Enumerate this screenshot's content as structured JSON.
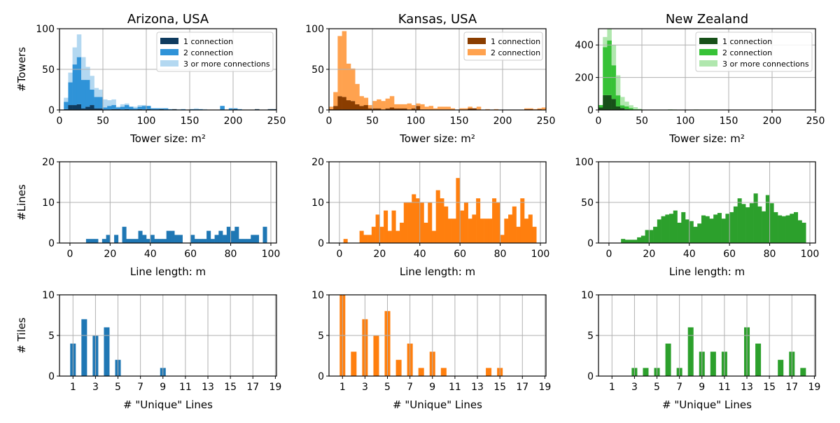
{
  "chart_data": [
    {
      "type": "bar",
      "subtype": "stacked-histogram",
      "title": "Arizona, USA",
      "xlabel": "Tower size: m²",
      "ylabel": "#Towers",
      "xlim": [
        0,
        250
      ],
      "ylim": [
        0,
        100
      ],
      "xticks": [
        0,
        50,
        100,
        150,
        200,
        250
      ],
      "yticks": [
        0,
        50,
        100
      ],
      "grid": true,
      "legend": "top-right",
      "bin_start": 0,
      "bin_width": 5,
      "series": [
        {
          "name": "1 connection",
          "color": "#0f3b5f",
          "values": [
            0,
            1,
            6,
            6,
            7,
            2,
            4,
            6,
            2,
            2,
            0,
            0,
            1,
            1,
            0,
            1,
            0,
            0,
            1,
            0,
            1,
            0,
            0,
            1,
            0,
            0,
            1,
            0,
            0,
            0,
            0,
            0,
            0,
            0,
            0,
            0,
            0,
            0,
            0,
            0,
            1,
            0,
            0,
            0,
            0,
            1,
            0,
            0,
            1,
            1
          ]
        },
        {
          "name": "2 connection",
          "color": "#2f93d8",
          "values": [
            0,
            9,
            28,
            50,
            58,
            35,
            33,
            19,
            14,
            14,
            3,
            5,
            5,
            2,
            4,
            5,
            4,
            2,
            3,
            5,
            4,
            2,
            2,
            1,
            2,
            1,
            0,
            0,
            1,
            0,
            1,
            1,
            1,
            0,
            0,
            0,
            0,
            5,
            0,
            2,
            1,
            1,
            0,
            0,
            0,
            0,
            0,
            0,
            0,
            0
          ]
        },
        {
          "name": "3 or more connections",
          "color": "#b3d8f1",
          "values": [
            0,
            5,
            12,
            21,
            28,
            28,
            16,
            17,
            11,
            9,
            10,
            7,
            7,
            1,
            3,
            2,
            0,
            2,
            2,
            1,
            0,
            0,
            0,
            0,
            0,
            0,
            0,
            1,
            0,
            0,
            0,
            1,
            0,
            1,
            0,
            0,
            0,
            0,
            0,
            0,
            0,
            0,
            0,
            0,
            0,
            0,
            0,
            0,
            0,
            0
          ]
        }
      ]
    },
    {
      "type": "bar",
      "subtype": "stacked-histogram",
      "title": "Kansas, USA",
      "xlabel": "Tower size: m²",
      "ylabel": "",
      "xlim": [
        0,
        250
      ],
      "ylim": [
        0,
        100
      ],
      "xticks": [
        0,
        50,
        100,
        150,
        200,
        250
      ],
      "yticks": [
        0,
        50,
        100
      ],
      "grid": true,
      "legend": "top-right",
      "bin_start": 0,
      "bin_width": 5,
      "series": [
        {
          "name": "1 connection",
          "color": "#8a3d00",
          "values": [
            1,
            5,
            17,
            16,
            12,
            11,
            7,
            5,
            6,
            2,
            2,
            2,
            0,
            2,
            3,
            2,
            2,
            2,
            0,
            2,
            5,
            0,
            0,
            0,
            0,
            0,
            0,
            0,
            0,
            0,
            0,
            0,
            2,
            2,
            0,
            0,
            0,
            0,
            0,
            0,
            0,
            0,
            0,
            0,
            0,
            1,
            1,
            0,
            1,
            0
          ]
        },
        {
          "name": "2 connection",
          "color": "#ffa24f",
          "values": [
            3,
            17,
            74,
            81,
            45,
            40,
            25,
            12,
            9,
            4,
            9,
            11,
            11,
            12,
            14,
            5,
            5,
            5,
            8,
            4,
            3,
            7,
            4,
            5,
            2,
            4,
            4,
            4,
            2,
            0,
            2,
            2,
            2,
            0,
            4,
            0,
            1,
            0,
            1,
            0,
            0,
            0,
            0,
            0,
            0,
            1,
            1,
            1,
            1,
            3
          ]
        }
      ]
    },
    {
      "type": "bar",
      "subtype": "stacked-histogram",
      "title": "New Zealand",
      "xlabel": "Tower size: m²",
      "ylabel": "",
      "xlim": [
        0,
        250
      ],
      "ylim": [
        0,
        500
      ],
      "xticks": [
        0,
        50,
        100,
        150,
        200,
        250
      ],
      "yticks": [
        0,
        200,
        400
      ],
      "grid": true,
      "legend": "top-right",
      "bin_start": 0,
      "bin_width": 5,
      "series": [
        {
          "name": "1 connection",
          "color": "#175019",
          "values": [
            15,
            91,
            91,
            68,
            22,
            12,
            4,
            1,
            0,
            0,
            0,
            0,
            0,
            0,
            0,
            0,
            0,
            0,
            0,
            0,
            0,
            0,
            0,
            0,
            0,
            0,
            0,
            0,
            0,
            0,
            0,
            0,
            0,
            0,
            0,
            0,
            0,
            0,
            0,
            0,
            0,
            0,
            0,
            0,
            0,
            0,
            0,
            0,
            0,
            0
          ]
        },
        {
          "name": "2 connection",
          "color": "#37c237",
          "values": [
            15,
            296,
            337,
            207,
            68,
            17,
            18,
            11,
            4,
            4,
            0,
            2,
            0,
            2,
            0,
            0,
            3,
            2,
            0,
            0,
            0,
            0,
            2,
            0,
            0,
            0,
            0,
            0,
            0,
            0,
            0,
            0,
            0,
            0,
            0,
            0,
            0,
            0,
            0,
            0,
            0,
            0,
            0,
            0,
            0,
            2,
            0,
            0,
            0,
            0
          ]
        },
        {
          "name": "3 or more connections",
          "color": "#b0e7ae",
          "values": [
            0,
            62,
            72,
            124,
            123,
            51,
            29,
            17,
            13,
            3,
            0,
            0,
            0,
            0,
            0,
            0,
            0,
            1,
            0,
            0,
            0,
            0,
            1,
            0,
            0,
            0,
            0,
            0,
            0,
            0,
            0,
            0,
            0,
            0,
            0,
            0,
            2,
            0,
            0,
            0,
            0,
            0,
            0,
            0,
            0,
            0,
            0,
            0,
            0,
            0
          ]
        }
      ]
    },
    {
      "type": "bar",
      "subtype": "histogram",
      "xlabel": "Line length: m",
      "ylabel": "#Lines",
      "xlim": [
        -5.2,
        102.8
      ],
      "ylim": [
        0,
        20
      ],
      "xticks": [
        0,
        20,
        40,
        60,
        80,
        100
      ],
      "yticks": [
        0,
        10,
        20
      ],
      "grid": true,
      "bin_start": 0,
      "bin_width": 2,
      "series": [
        {
          "color": "#1f77b4",
          "values": [
            0,
            0,
            0,
            0,
            1,
            1,
            1,
            0,
            1,
            2,
            0,
            2,
            0,
            4,
            1,
            1,
            1,
            3,
            2,
            1,
            2,
            1,
            1,
            1,
            3,
            3,
            2,
            2,
            0,
            0,
            2,
            1,
            1,
            1,
            3,
            1,
            2,
            3,
            2,
            4,
            3,
            4,
            1,
            1,
            1,
            2,
            2,
            0,
            4,
            0
          ]
        }
      ]
    },
    {
      "type": "bar",
      "subtype": "histogram",
      "xlabel": "Line length: m",
      "ylabel": "",
      "xlim": [
        -5.2,
        102.8
      ],
      "ylim": [
        0,
        20
      ],
      "xticks": [
        0,
        20,
        40,
        60,
        80,
        100
      ],
      "yticks": [
        0,
        10,
        20
      ],
      "grid": true,
      "bin_start": 0,
      "bin_width": 2,
      "series": [
        {
          "color": "#ff7f0e",
          "values": [
            0,
            1,
            0,
            0,
            0,
            3,
            2,
            2,
            4,
            7,
            4,
            8,
            3,
            8,
            3,
            5,
            10,
            10,
            12,
            11,
            10,
            5,
            10,
            3,
            13,
            11,
            9,
            6,
            6,
            16,
            8,
            10,
            6,
            7,
            11,
            6,
            6,
            6,
            11,
            10,
            2,
            6,
            7,
            9,
            4,
            11,
            6,
            7,
            4,
            0
          ]
        }
      ]
    },
    {
      "type": "bar",
      "subtype": "histogram",
      "xlabel": "Line length: m",
      "ylabel": "",
      "xlim": [
        -5.2,
        102.8
      ],
      "ylim": [
        0,
        100
      ],
      "xticks": [
        0,
        20,
        40,
        60,
        80,
        100
      ],
      "yticks": [
        0,
        50,
        100
      ],
      "grid": true,
      "bin_start": 0,
      "bin_width": 2,
      "series": [
        {
          "color": "#2ca02c",
          "values": [
            0,
            0,
            0,
            5,
            4,
            4,
            4,
            7,
            9,
            16,
            16,
            20,
            29,
            33,
            35,
            36,
            40,
            25,
            38,
            29,
            27,
            20,
            24,
            34,
            33,
            30,
            35,
            37,
            30,
            36,
            38,
            45,
            55,
            48,
            44,
            49,
            61,
            45,
            39,
            59,
            49,
            38,
            34,
            33,
            34,
            36,
            38,
            28,
            25,
            0
          ]
        }
      ]
    },
    {
      "type": "bar",
      "xlabel": "# \"Unique\" Lines",
      "ylabel": "# Tiles",
      "xlim": [
        -0.2,
        19.1
      ],
      "ylim": [
        0,
        10
      ],
      "xticks": [
        1,
        3,
        5,
        7,
        9,
        11,
        13,
        15,
        17,
        19
      ],
      "yticks": [
        0,
        5,
        10
      ],
      "grid": true,
      "categories": [
        1,
        2,
        3,
        4,
        5,
        9
      ],
      "series": [
        {
          "color": "#1f77b4",
          "values": [
            4,
            7,
            5,
            6,
            2,
            1
          ]
        }
      ]
    },
    {
      "type": "bar",
      "xlabel": "# \"Unique\" Lines",
      "ylabel": "",
      "xlim": [
        -0.2,
        19.1
      ],
      "ylim": [
        0,
        10
      ],
      "xticks": [
        1,
        3,
        5,
        7,
        9,
        11,
        13,
        15,
        17,
        19
      ],
      "yticks": [
        0,
        5,
        10
      ],
      "grid": true,
      "categories": [
        1,
        2,
        3,
        4,
        5,
        6,
        7,
        8,
        9,
        10,
        14,
        15
      ],
      "series": [
        {
          "color": "#ff7f0e",
          "values": [
            10,
            3,
            7,
            5,
            8,
            2,
            4,
            1,
            3,
            1,
            1,
            1
          ]
        }
      ]
    },
    {
      "type": "bar",
      "xlabel": "# \"Unique\" Lines",
      "ylabel": "",
      "xlim": [
        -0.2,
        19.1
      ],
      "ylim": [
        0,
        10
      ],
      "xticks": [
        1,
        3,
        5,
        7,
        9,
        11,
        13,
        15,
        17,
        19
      ],
      "yticks": [
        0,
        5,
        10
      ],
      "grid": true,
      "categories": [
        3,
        4,
        5,
        6,
        7,
        8,
        9,
        10,
        11,
        13,
        14,
        16,
        17,
        18
      ],
      "series": [
        {
          "color": "#2ca02c",
          "values": [
            1,
            1,
            1,
            4,
            1,
            6,
            3,
            3,
            3,
            6,
            4,
            2,
            3,
            1
          ]
        }
      ]
    }
  ]
}
